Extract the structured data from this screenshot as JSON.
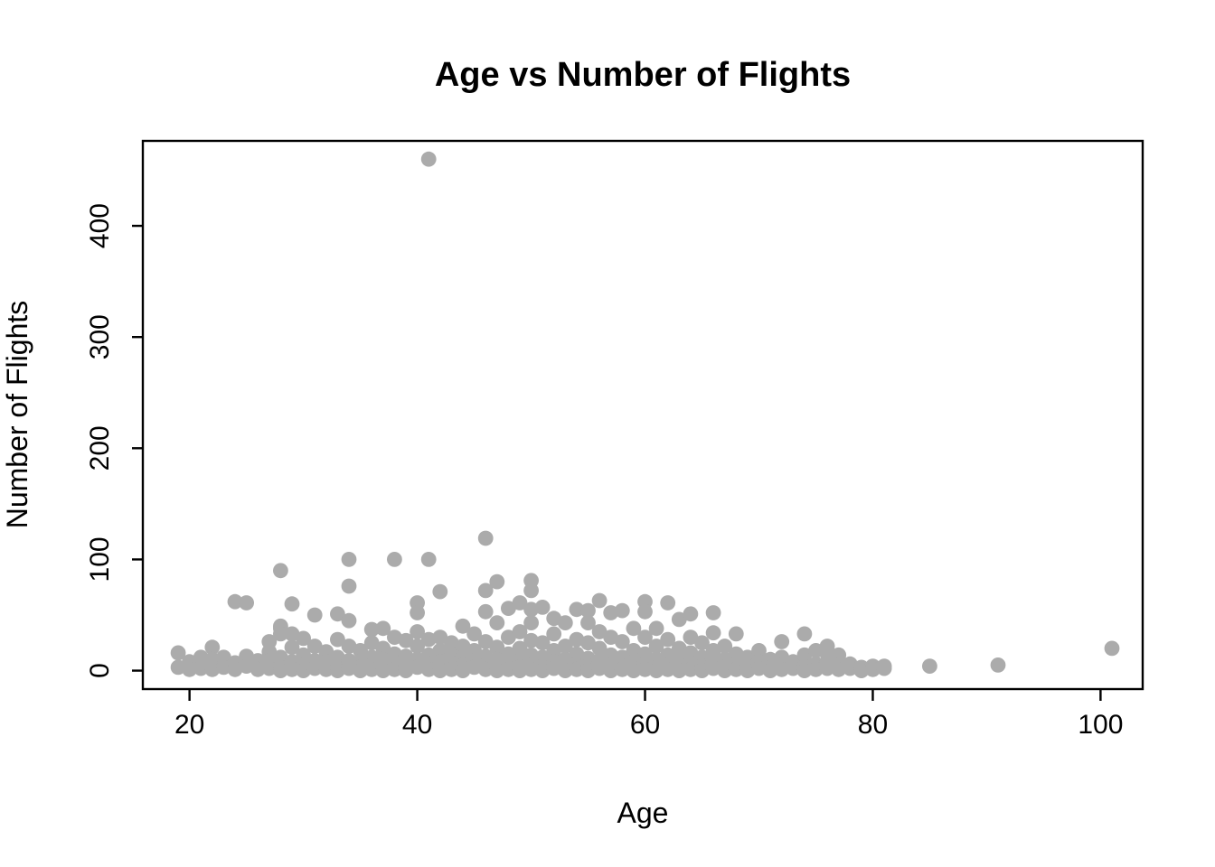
{
  "figure": {
    "background": "#ffffff",
    "title": "Age vs Number of Flights",
    "x_axis_label": "Age",
    "y_axis_label": "Number of Flights"
  },
  "chart_data": {
    "type": "scatter",
    "title": "Age vs Number of Flights",
    "xlabel": "Age",
    "ylabel": "Number of Flights",
    "x_ticks": [
      20,
      40,
      60,
      80,
      100
    ],
    "y_ticks": [
      0,
      100,
      200,
      300,
      400
    ],
    "xlim": [
      15.9,
      103.7
    ],
    "ylim": [
      -16.6,
      476.4
    ],
    "grid": false,
    "legend": false,
    "point_color": "#ABABAB",
    "point_radius": 8.4,
    "axis_color": "#000000",
    "outlier": [
      41,
      460
    ],
    "points": [
      [
        19,
        16
      ],
      [
        19,
        3
      ],
      [
        20,
        8
      ],
      [
        20,
        1
      ],
      [
        21,
        12
      ],
      [
        21,
        2
      ],
      [
        22,
        21
      ],
      [
        22,
        10
      ],
      [
        22,
        1
      ],
      [
        23,
        12
      ],
      [
        23,
        3
      ],
      [
        24,
        62
      ],
      [
        24,
        7
      ],
      [
        24,
        1
      ],
      [
        25,
        61
      ],
      [
        25,
        13
      ],
      [
        25,
        4
      ],
      [
        26,
        9
      ],
      [
        26,
        1
      ],
      [
        27,
        26
      ],
      [
        27,
        17
      ],
      [
        27,
        9
      ],
      [
        27,
        2
      ],
      [
        28,
        90
      ],
      [
        28,
        40
      ],
      [
        28,
        38
      ],
      [
        28,
        33
      ],
      [
        28,
        12
      ],
      [
        28,
        3
      ],
      [
        28,
        0
      ],
      [
        29,
        60
      ],
      [
        29,
        33
      ],
      [
        29,
        21
      ],
      [
        29,
        8
      ],
      [
        29,
        1
      ],
      [
        30,
        29
      ],
      [
        30,
        14
      ],
      [
        30,
        5
      ],
      [
        30,
        0
      ],
      [
        31,
        50
      ],
      [
        31,
        22
      ],
      [
        31,
        9
      ],
      [
        31,
        2
      ],
      [
        32,
        17
      ],
      [
        32,
        8
      ],
      [
        32,
        1
      ],
      [
        33,
        51
      ],
      [
        33,
        28
      ],
      [
        33,
        12
      ],
      [
        33,
        4
      ],
      [
        33,
        0
      ],
      [
        34,
        100
      ],
      [
        34,
        76
      ],
      [
        34,
        45
      ],
      [
        34,
        22
      ],
      [
        34,
        9
      ],
      [
        34,
        2
      ],
      [
        35,
        18
      ],
      [
        35,
        8
      ],
      [
        35,
        3
      ],
      [
        35,
        0
      ],
      [
        36,
        37
      ],
      [
        36,
        25
      ],
      [
        36,
        12
      ],
      [
        36,
        5
      ],
      [
        36,
        1
      ],
      [
        37,
        38
      ],
      [
        37,
        20
      ],
      [
        37,
        10
      ],
      [
        37,
        2
      ],
      [
        37,
        0
      ],
      [
        38,
        100
      ],
      [
        38,
        30
      ],
      [
        38,
        15
      ],
      [
        38,
        6
      ],
      [
        38,
        1
      ],
      [
        39,
        27
      ],
      [
        39,
        13
      ],
      [
        39,
        4
      ],
      [
        39,
        0
      ],
      [
        40,
        61
      ],
      [
        40,
        52
      ],
      [
        40,
        35
      ],
      [
        40,
        22
      ],
      [
        40,
        10
      ],
      [
        40,
        3
      ],
      [
        41,
        460
      ],
      [
        41,
        100
      ],
      [
        41,
        28
      ],
      [
        41,
        14
      ],
      [
        41,
        6
      ],
      [
        41,
        1
      ],
      [
        42,
        71
      ],
      [
        42,
        30
      ],
      [
        42,
        18
      ],
      [
        42,
        8
      ],
      [
        42,
        2
      ],
      [
        42,
        0
      ],
      [
        43,
        25
      ],
      [
        43,
        15
      ],
      [
        43,
        7
      ],
      [
        43,
        1
      ],
      [
        44,
        40
      ],
      [
        44,
        22
      ],
      [
        44,
        12
      ],
      [
        44,
        5
      ],
      [
        44,
        0
      ],
      [
        45,
        33
      ],
      [
        45,
        18
      ],
      [
        45,
        9
      ],
      [
        45,
        3
      ],
      [
        46,
        119
      ],
      [
        46,
        72
      ],
      [
        46,
        53
      ],
      [
        46,
        26
      ],
      [
        46,
        13
      ],
      [
        46,
        5
      ],
      [
        46,
        1
      ],
      [
        47,
        80
      ],
      [
        47,
        43
      ],
      [
        47,
        21
      ],
      [
        47,
        10
      ],
      [
        47,
        2
      ],
      [
        47,
        0
      ],
      [
        48,
        56
      ],
      [
        48,
        30
      ],
      [
        48,
        15
      ],
      [
        48,
        6
      ],
      [
        48,
        1
      ],
      [
        49,
        61
      ],
      [
        49,
        35
      ],
      [
        49,
        20
      ],
      [
        49,
        9
      ],
      [
        49,
        3
      ],
      [
        49,
        0
      ],
      [
        50,
        81
      ],
      [
        50,
        72
      ],
      [
        50,
        55
      ],
      [
        50,
        43
      ],
      [
        50,
        27
      ],
      [
        50,
        14
      ],
      [
        50,
        5
      ],
      [
        50,
        1
      ],
      [
        51,
        57
      ],
      [
        51,
        25
      ],
      [
        51,
        12
      ],
      [
        51,
        4
      ],
      [
        51,
        0
      ],
      [
        52,
        47
      ],
      [
        52,
        33
      ],
      [
        52,
        18
      ],
      [
        52,
        8
      ],
      [
        52,
        2
      ],
      [
        53,
        43
      ],
      [
        53,
        22
      ],
      [
        53,
        10
      ],
      [
        53,
        3
      ],
      [
        53,
        0
      ],
      [
        54,
        55
      ],
      [
        54,
        28
      ],
      [
        54,
        15
      ],
      [
        54,
        6
      ],
      [
        54,
        1
      ],
      [
        55,
        54
      ],
      [
        55,
        43
      ],
      [
        55,
        25
      ],
      [
        55,
        11
      ],
      [
        55,
        4
      ],
      [
        55,
        0
      ],
      [
        56,
        63
      ],
      [
        56,
        35
      ],
      [
        56,
        20
      ],
      [
        56,
        9
      ],
      [
        56,
        2
      ],
      [
        57,
        52
      ],
      [
        57,
        30
      ],
      [
        57,
        14
      ],
      [
        57,
        5
      ],
      [
        57,
        0
      ],
      [
        58,
        54
      ],
      [
        58,
        26
      ],
      [
        58,
        12
      ],
      [
        58,
        4
      ],
      [
        58,
        1
      ],
      [
        59,
        38
      ],
      [
        59,
        18
      ],
      [
        59,
        8
      ],
      [
        59,
        2
      ],
      [
        59,
        0
      ],
      [
        60,
        62
      ],
      [
        60,
        53
      ],
      [
        60,
        30
      ],
      [
        60,
        15
      ],
      [
        60,
        6
      ],
      [
        60,
        1
      ],
      [
        61,
        38
      ],
      [
        61,
        22
      ],
      [
        61,
        10
      ],
      [
        61,
        3
      ],
      [
        61,
        0
      ],
      [
        62,
        61
      ],
      [
        62,
        28
      ],
      [
        62,
        14
      ],
      [
        62,
        5
      ],
      [
        62,
        1
      ],
      [
        63,
        46
      ],
      [
        63,
        20
      ],
      [
        63,
        9
      ],
      [
        63,
        2
      ],
      [
        63,
        0
      ],
      [
        64,
        51
      ],
      [
        64,
        30
      ],
      [
        64,
        16
      ],
      [
        64,
        7
      ],
      [
        64,
        1
      ],
      [
        65,
        25
      ],
      [
        65,
        12
      ],
      [
        65,
        4
      ],
      [
        65,
        0
      ],
      [
        66,
        52
      ],
      [
        66,
        34
      ],
      [
        66,
        18
      ],
      [
        66,
        8
      ],
      [
        66,
        2
      ],
      [
        67,
        22
      ],
      [
        67,
        10
      ],
      [
        67,
        3
      ],
      [
        67,
        0
      ],
      [
        68,
        33
      ],
      [
        68,
        15
      ],
      [
        68,
        6
      ],
      [
        68,
        1
      ],
      [
        69,
        12
      ],
      [
        69,
        4
      ],
      [
        69,
        0
      ],
      [
        70,
        18
      ],
      [
        70,
        8
      ],
      [
        70,
        2
      ],
      [
        71,
        10
      ],
      [
        71,
        3
      ],
      [
        71,
        0
      ],
      [
        72,
        26
      ],
      [
        72,
        12
      ],
      [
        72,
        5
      ],
      [
        72,
        1
      ],
      [
        73,
        8
      ],
      [
        73,
        2
      ],
      [
        74,
        33
      ],
      [
        74,
        14
      ],
      [
        74,
        4
      ],
      [
        74,
        0
      ],
      [
        75,
        18
      ],
      [
        75,
        6
      ],
      [
        75,
        1
      ],
      [
        76,
        22
      ],
      [
        76,
        15
      ],
      [
        76,
        8
      ],
      [
        76,
        2
      ],
      [
        77,
        14
      ],
      [
        77,
        5
      ],
      [
        77,
        1
      ],
      [
        78,
        6
      ],
      [
        78,
        2
      ],
      [
        79,
        3
      ],
      [
        79,
        0
      ],
      [
        80,
        4
      ],
      [
        80,
        1
      ],
      [
        81,
        4
      ],
      [
        81,
        2
      ],
      [
        85,
        4
      ],
      [
        91,
        5
      ],
      [
        101,
        20
      ]
    ]
  }
}
